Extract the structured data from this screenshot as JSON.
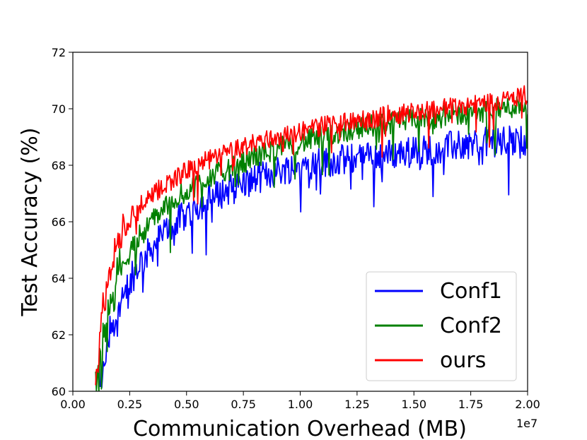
{
  "chart_data": {
    "type": "line",
    "title": "",
    "xlabel": "Communication Overhead (MB)",
    "ylabel": "Test Accuracy (%)",
    "x_offset_label": "1e7",
    "xlim": [
      0,
      2.0
    ],
    "ylim": [
      60,
      72
    ],
    "x_ticks": [
      "0.00",
      "0.25",
      "0.50",
      "0.75",
      "1.00",
      "1.25",
      "1.50",
      "1.75",
      "2.00"
    ],
    "y_ticks": [
      "60",
      "62",
      "64",
      "66",
      "68",
      "70",
      "72"
    ],
    "grid": false,
    "legend_position": "lower-right",
    "series": [
      {
        "name": "Conf1",
        "color": "#0000ff",
        "x": [
          0.12,
          0.15,
          0.2,
          0.25,
          0.3,
          0.4,
          0.5,
          0.6,
          0.7,
          0.8,
          0.9,
          1.0,
          1.1,
          1.2,
          1.3,
          1.4,
          1.5,
          1.6,
          1.7,
          1.8,
          1.9,
          2.0
        ],
        "y": [
          59.8,
          61.5,
          62.8,
          63.8,
          64.6,
          65.6,
          66.3,
          66.8,
          67.2,
          67.5,
          67.8,
          68.0,
          68.1,
          68.2,
          68.3,
          68.4,
          68.5,
          68.6,
          68.7,
          68.8,
          68.85,
          68.9
        ]
      },
      {
        "name": "Conf2",
        "color": "#008000",
        "x": [
          0.1,
          0.12,
          0.15,
          0.2,
          0.25,
          0.3,
          0.4,
          0.5,
          0.6,
          0.7,
          0.8,
          0.9,
          1.0,
          1.1,
          1.2,
          1.3,
          1.4,
          1.5,
          1.6,
          1.7,
          1.8,
          1.9,
          2.0
        ],
        "y": [
          60.0,
          61.0,
          62.8,
          64.2,
          65.0,
          65.6,
          66.5,
          67.1,
          67.6,
          67.9,
          68.3,
          68.6,
          68.8,
          69.0,
          69.2,
          69.4,
          69.5,
          69.6,
          69.7,
          69.8,
          69.9,
          70.0,
          70.2
        ]
      },
      {
        "name": "ours",
        "color": "#ff0000",
        "x": [
          0.1,
          0.12,
          0.15,
          0.2,
          0.25,
          0.3,
          0.4,
          0.5,
          0.6,
          0.7,
          0.8,
          0.9,
          1.0,
          1.1,
          1.2,
          1.3,
          1.4,
          1.5,
          1.6,
          1.7,
          1.8,
          1.9,
          2.0
        ],
        "y": [
          60.2,
          62.0,
          63.8,
          65.3,
          66.0,
          66.5,
          67.3,
          67.8,
          68.2,
          68.5,
          68.8,
          69.0,
          69.2,
          69.4,
          69.5,
          69.6,
          69.8,
          69.9,
          70.0,
          70.1,
          70.2,
          70.3,
          70.5
        ]
      }
    ]
  }
}
